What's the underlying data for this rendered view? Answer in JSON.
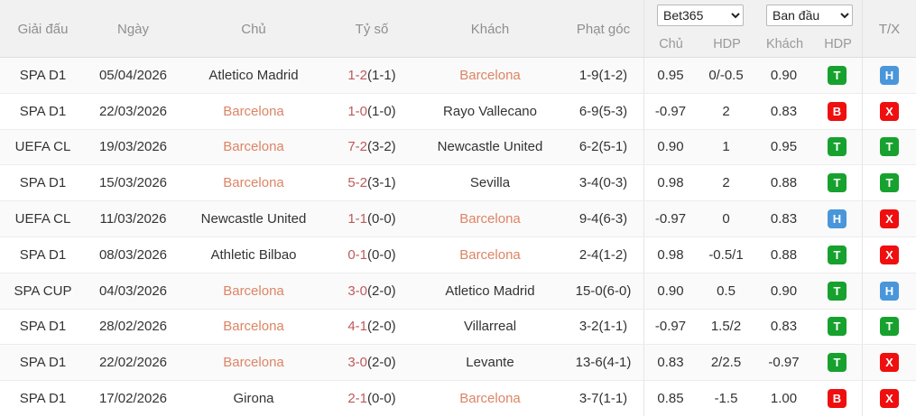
{
  "header": {
    "league": "Giải đấu",
    "date": "Ngày",
    "home": "Chủ",
    "score": "Tỷ số",
    "away": "Khách",
    "corners": "Phạt góc",
    "tx": "T/X",
    "selects": [
      {
        "name": "odds-provider",
        "value": "Bet365"
      },
      {
        "name": "odds-type",
        "value": "Ban đầu"
      }
    ],
    "odds_sub_columns": [
      "Chủ",
      "HDP",
      "Khách",
      "HDP"
    ]
  },
  "colors": {
    "highlight_team": "#dd8464",
    "score_main": "#bd5a5a",
    "badge_green": "#17a12e",
    "badge_blue": "#4a96db",
    "badge_red": "#ef0f0f"
  },
  "rows": [
    {
      "league": "SPA D1",
      "date": "05/04/2026",
      "home": "Atletico Madrid",
      "home_hl": false,
      "score_main": "1-2",
      "score_half": "(1-1)",
      "away": "Barcelona",
      "away_hl": true,
      "corners": "1-9(1-2)",
      "odds_home": "0.95",
      "hdp": "0/-0.5",
      "odds_away": "0.90",
      "hdp_result": {
        "label": "T",
        "type": "green"
      },
      "tx_result": {
        "label": "H",
        "type": "blue"
      }
    },
    {
      "league": "SPA D1",
      "date": "22/03/2026",
      "home": "Barcelona",
      "home_hl": true,
      "score_main": "1-0",
      "score_half": "(1-0)",
      "away": "Rayo Vallecano",
      "away_hl": false,
      "corners": "6-9(5-3)",
      "odds_home": "-0.97",
      "hdp": "2",
      "odds_away": "0.83",
      "hdp_result": {
        "label": "B",
        "type": "red"
      },
      "tx_result": {
        "label": "X",
        "type": "red"
      }
    },
    {
      "league": "UEFA CL",
      "date": "19/03/2026",
      "home": "Barcelona",
      "home_hl": true,
      "score_main": "7-2",
      "score_half": "(3-2)",
      "away": "Newcastle United",
      "away_hl": false,
      "corners": "6-2(5-1)",
      "odds_home": "0.90",
      "hdp": "1",
      "odds_away": "0.95",
      "hdp_result": {
        "label": "T",
        "type": "green"
      },
      "tx_result": {
        "label": "T",
        "type": "green"
      }
    },
    {
      "league": "SPA D1",
      "date": "15/03/2026",
      "home": "Barcelona",
      "home_hl": true,
      "score_main": "5-2",
      "score_half": "(3-1)",
      "away": "Sevilla",
      "away_hl": false,
      "corners": "3-4(0-3)",
      "odds_home": "0.98",
      "hdp": "2",
      "odds_away": "0.88",
      "hdp_result": {
        "label": "T",
        "type": "green"
      },
      "tx_result": {
        "label": "T",
        "type": "green"
      }
    },
    {
      "league": "UEFA CL",
      "date": "11/03/2026",
      "home": "Newcastle United",
      "home_hl": false,
      "score_main": "1-1",
      "score_half": "(0-0)",
      "away": "Barcelona",
      "away_hl": true,
      "corners": "9-4(6-3)",
      "odds_home": "-0.97",
      "hdp": "0",
      "odds_away": "0.83",
      "hdp_result": {
        "label": "H",
        "type": "blue"
      },
      "tx_result": {
        "label": "X",
        "type": "red"
      }
    },
    {
      "league": "SPA D1",
      "date": "08/03/2026",
      "home": "Athletic Bilbao",
      "home_hl": false,
      "score_main": "0-1",
      "score_half": "(0-0)",
      "away": "Barcelona",
      "away_hl": true,
      "corners": "2-4(1-2)",
      "odds_home": "0.98",
      "hdp": "-0.5/1",
      "odds_away": "0.88",
      "hdp_result": {
        "label": "T",
        "type": "green"
      },
      "tx_result": {
        "label": "X",
        "type": "red"
      }
    },
    {
      "league": "SPA CUP",
      "date": "04/03/2026",
      "home": "Barcelona",
      "home_hl": true,
      "score_main": "3-0",
      "score_half": "(2-0)",
      "away": "Atletico Madrid",
      "away_hl": false,
      "corners": "15-0(6-0)",
      "odds_home": "0.90",
      "hdp": "0.5",
      "odds_away": "0.90",
      "hdp_result": {
        "label": "T",
        "type": "green"
      },
      "tx_result": {
        "label": "H",
        "type": "blue"
      }
    },
    {
      "league": "SPA D1",
      "date": "28/02/2026",
      "home": "Barcelona",
      "home_hl": true,
      "score_main": "4-1",
      "score_half": "(2-0)",
      "away": "Villarreal",
      "away_hl": false,
      "corners": "3-2(1-1)",
      "odds_home": "-0.97",
      "hdp": "1.5/2",
      "odds_away": "0.83",
      "hdp_result": {
        "label": "T",
        "type": "green"
      },
      "tx_result": {
        "label": "T",
        "type": "green"
      }
    },
    {
      "league": "SPA D1",
      "date": "22/02/2026",
      "home": "Barcelona",
      "home_hl": true,
      "score_main": "3-0",
      "score_half": "(2-0)",
      "away": "Levante",
      "away_hl": false,
      "corners": "13-6(4-1)",
      "odds_home": "0.83",
      "hdp": "2/2.5",
      "odds_away": "-0.97",
      "hdp_result": {
        "label": "T",
        "type": "green"
      },
      "tx_result": {
        "label": "X",
        "type": "red"
      }
    },
    {
      "league": "SPA D1",
      "date": "17/02/2026",
      "home": "Girona",
      "home_hl": false,
      "score_main": "2-1",
      "score_half": "(0-0)",
      "away": "Barcelona",
      "away_hl": true,
      "corners": "3-7(1-1)",
      "odds_home": "0.85",
      "hdp": "-1.5",
      "odds_away": "1.00",
      "hdp_result": {
        "label": "B",
        "type": "red"
      },
      "tx_result": {
        "label": "X",
        "type": "red"
      }
    }
  ]
}
